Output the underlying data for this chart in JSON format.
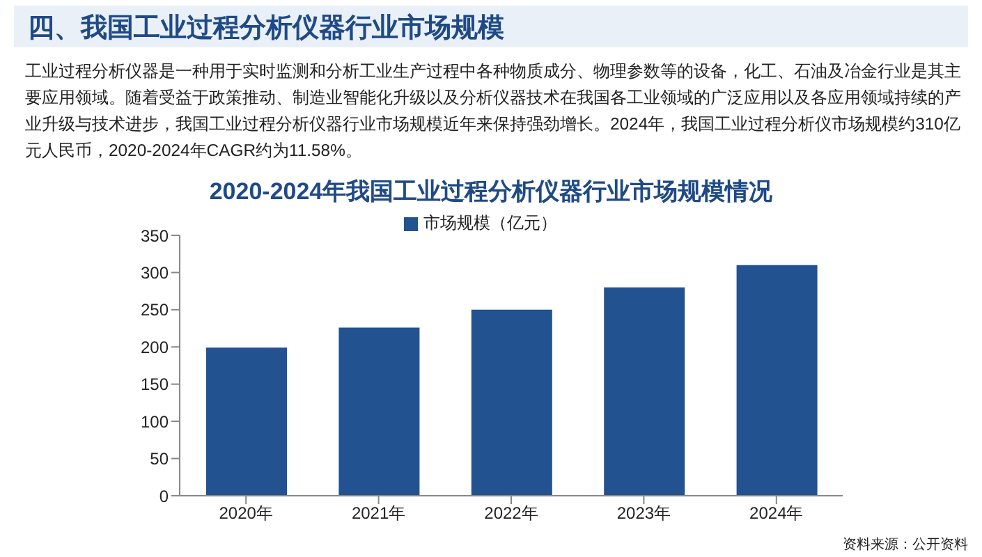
{
  "chart_data": {
    "type": "bar",
    "title": "2020-2024年我国工业过程分析仪器行业市场规模情况",
    "subtitle": "工业过程分析仪器是一种用于实时监测和分析工业生产过程中各种物质成分、物理参数等的设备，化工、石油及冶金行业是其主要应用领域。随着受益于政策推动、制造业智能化升级以及分析仪器技术在我国各工业领域的广泛应用以及各应用领域持续的产业升级与技术进步，我国工业过程分析仪器行业市场规模近年来保持强劲增长。2024年，我国工业过程分析仪市场规模约310亿元人民币，2020-2024年CAGR约为11.58%。",
    "annotations": [
      "四、我国工业过程分析仪器行业市场规模",
      "资料来源：公开资料"
    ],
    "categories": [
      "2020年",
      "2021年",
      "2022年",
      "2023年",
      "2024年"
    ],
    "series": [
      {
        "name": "市场规模（亿元）",
        "color": "#22528f",
        "values": [
          199,
          226,
          250,
          280,
          310
        ]
      }
    ],
    "ylim": [
      0,
      350
    ],
    "yticks": [
      0,
      50,
      100,
      150,
      200,
      250,
      300,
      350
    ],
    "grid": false,
    "legend": "top"
  }
}
